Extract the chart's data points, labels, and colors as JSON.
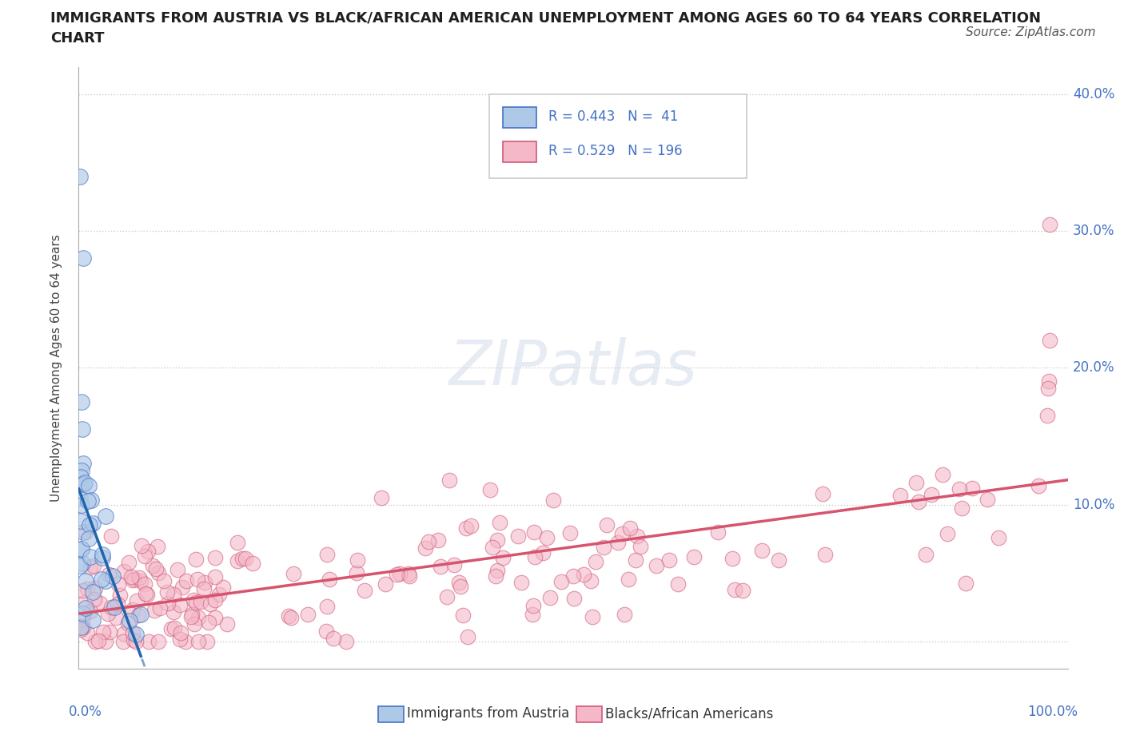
{
  "title_line1": "IMMIGRANTS FROM AUSTRIA VS BLACK/AFRICAN AMERICAN UNEMPLOYMENT AMONG AGES 60 TO 64 YEARS CORRELATION",
  "title_line2": "CHART",
  "source": "Source: ZipAtlas.com",
  "ylabel": "Unemployment Among Ages 60 to 64 years",
  "xlim": [
    0.0,
    1.0
  ],
  "ylim": [
    -0.02,
    0.42
  ],
  "yticks": [
    0.0,
    0.1,
    0.2,
    0.3,
    0.4
  ],
  "ytick_labels": [
    "",
    "10.0%",
    "20.0%",
    "30.0%",
    "40.0%"
  ],
  "watermark": "ZIPatlas",
  "blue_color": "#aec9e8",
  "blue_edge_color": "#4472C4",
  "pink_color": "#f4b8c8",
  "pink_edge_color": "#d05a78",
  "blue_line_color": "#2166ac",
  "pink_line_color": "#d6546e",
  "axis_label_color": "#4472C4",
  "title_color": "#1f1f1f",
  "legend_border_color": "#cccccc",
  "grid_color": "#cccccc"
}
